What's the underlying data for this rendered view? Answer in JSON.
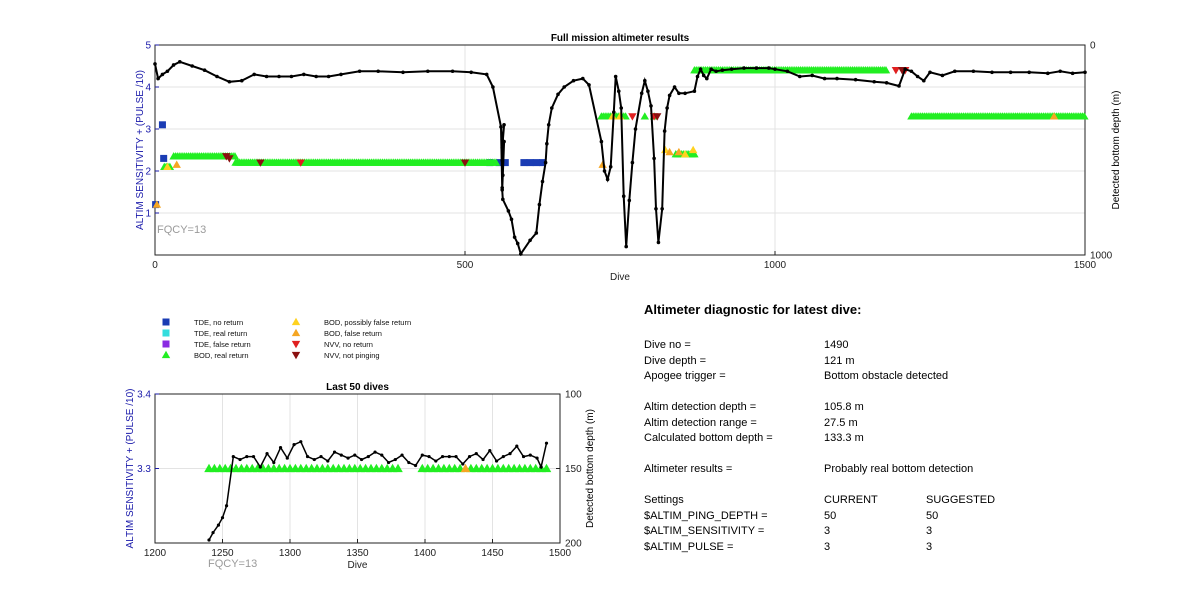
{
  "colors": {
    "tde_no_return": "#1a3cb4",
    "tde_real_return": "#33dddd",
    "tde_false_return": "#8a2be2",
    "bod_real_return": "#22ee22",
    "bod_possibly_false": "#ffd21f",
    "bod_false_return": "#f5a623",
    "nvv_no_return": "#e02020",
    "nvv_not_pinging": "#8b1010",
    "axis_left": "#1a1aaa",
    "depth_line": "#000000",
    "fqcy": "#9a9a9a"
  },
  "chart_data": [
    {
      "type": "scatter",
      "title": "Full mission altimeter results",
      "xlabel": "Dive",
      "ylabel": "ALTIM SENSITIVITY + (PULSE /10)",
      "ylabel_right": "Detected bottom depth (m)",
      "xlim": [
        0,
        1500
      ],
      "ylim": [
        0,
        5
      ],
      "ylim_right": [
        1000,
        0
      ],
      "xticks": [
        0,
        500,
        1000,
        1500
      ],
      "yticks": [
        1,
        2,
        3,
        4,
        5
      ],
      "yticks_right": [
        0,
        1000
      ],
      "grid": true,
      "annotation": "FQCY=13",
      "legend": [
        {
          "label": "TDE, no return",
          "marker": "square",
          "color": "#1a3cb4"
        },
        {
          "label": "TDE, real return",
          "marker": "square",
          "color": "#33dddd"
        },
        {
          "label": "TDE, false return",
          "marker": "square",
          "color": "#8a2be2"
        },
        {
          "label": "BOD, real return",
          "marker": "triangle-up",
          "color": "#22ee22"
        },
        {
          "label": "BOD, possibly false return",
          "marker": "triangle-up",
          "color": "#ffd21f"
        },
        {
          "label": "BOD, false return",
          "marker": "triangle-up",
          "color": "#f5a623"
        },
        {
          "label": "NVV, no return",
          "marker": "triangle-down",
          "color": "#e02020"
        },
        {
          "label": "NVV, not pinging",
          "marker": "triangle-down",
          "color": "#8b1010"
        }
      ],
      "altimeter_series": [
        {
          "name": "TDE, no return",
          "marker": "square",
          "color": "#1a3cb4",
          "points": [
            [
              1,
              1.2
            ],
            [
              12,
              3.1
            ],
            [
              14,
              2.3
            ],
            [
              540,
              2.2
            ],
            [
              555,
              2.2
            ],
            [
              565,
              2.2
            ],
            [
              595,
              2.2
            ],
            [
              605,
              2.2
            ],
            [
              615,
              2.2
            ],
            [
              625,
              2.2
            ]
          ]
        },
        {
          "name": "BOD, real return",
          "marker": "triangle-up",
          "color": "#22ee22",
          "x_ranges": [
            [
              15,
              25,
              2.1
            ],
            [
              30,
              130,
              2.35
            ],
            [
              130,
              550,
              2.2
            ],
            [
              720,
              760,
              3.3
            ],
            [
              840,
              870,
              2.4
            ],
            [
              870,
              1180,
              4.4
            ],
            [
              1220,
              1500,
              3.3
            ]
          ],
          "points": [
            [
              790,
              3.3
            ],
            [
              805,
              3.3
            ]
          ]
        },
        {
          "name": "BOD, possibly false return",
          "marker": "triangle-up",
          "color": "#ffd21f",
          "points": [
            [
              20,
              2.1
            ],
            [
              738,
              3.3
            ],
            [
              750,
              3.3
            ],
            [
              823,
              2.5
            ],
            [
              855,
              2.4
            ],
            [
              868,
              2.5
            ]
          ]
        },
        {
          "name": "BOD, false return",
          "marker": "triangle-up",
          "color": "#f5a623",
          "points": [
            [
              3,
              1.2
            ],
            [
              35,
              2.15
            ],
            [
              722,
              2.15
            ],
            [
              830,
              2.45
            ],
            [
              845,
              2.45
            ],
            [
              1450,
              3.3
            ]
          ]
        },
        {
          "name": "NVV, no return",
          "marker": "triangle-down",
          "color": "#e02020",
          "points": [
            [
              235,
              2.2
            ],
            [
              770,
              3.3
            ],
            [
              805,
              3.3
            ],
            [
              1195,
              4.4
            ],
            [
              1210,
              4.4
            ]
          ]
        },
        {
          "name": "NVV, not pinging",
          "marker": "triangle-down",
          "color": "#8b1010",
          "points": [
            [
              115,
              2.35
            ],
            [
              120,
              2.3
            ],
            [
              170,
              2.2
            ],
            [
              500,
              2.2
            ],
            [
              810,
              3.3
            ],
            [
              1205,
              4.4
            ]
          ]
        }
      ],
      "depth_series": {
        "name": "Detected bottom depth",
        "color": "#000000",
        "points": [
          [
            0,
            90
          ],
          [
            5,
            160
          ],
          [
            12,
            140
          ],
          [
            20,
            125
          ],
          [
            30,
            95
          ],
          [
            40,
            80
          ],
          [
            60,
            100
          ],
          [
            80,
            120
          ],
          [
            100,
            150
          ],
          [
            120,
            175
          ],
          [
            140,
            170
          ],
          [
            160,
            140
          ],
          [
            180,
            150
          ],
          [
            200,
            150
          ],
          [
            220,
            150
          ],
          [
            240,
            140
          ],
          [
            260,
            150
          ],
          [
            280,
            150
          ],
          [
            300,
            140
          ],
          [
            330,
            125
          ],
          [
            360,
            125
          ],
          [
            400,
            130
          ],
          [
            440,
            125
          ],
          [
            480,
            125
          ],
          [
            510,
            130
          ],
          [
            535,
            140
          ],
          [
            545,
            200
          ],
          [
            558,
            390
          ],
          [
            560,
            680
          ],
          [
            560,
            490
          ],
          [
            563,
            380
          ],
          [
            560,
            450
          ],
          [
            560,
            550
          ],
          [
            563,
            460
          ],
          [
            561,
            620
          ],
          [
            560,
            690
          ],
          [
            561,
            735
          ],
          [
            570,
            790
          ],
          [
            575,
            830
          ],
          [
            580,
            915
          ],
          [
            585,
            945
          ],
          [
            590,
            995
          ],
          [
            605,
            930
          ],
          [
            615,
            895
          ],
          [
            620,
            760
          ],
          [
            625,
            650
          ],
          [
            630,
            560
          ],
          [
            632,
            470
          ],
          [
            635,
            380
          ],
          [
            640,
            300
          ],
          [
            650,
            235
          ],
          [
            660,
            200
          ],
          [
            675,
            170
          ],
          [
            690,
            160
          ],
          [
            700,
            190
          ],
          [
            720,
            460
          ],
          [
            725,
            600
          ],
          [
            730,
            640
          ],
          [
            735,
            580
          ],
          [
            740,
            320
          ],
          [
            743,
            150
          ],
          [
            748,
            220
          ],
          [
            752,
            300
          ],
          [
            756,
            720
          ],
          [
            760,
            960
          ],
          [
            765,
            740
          ],
          [
            770,
            560
          ],
          [
            775,
            400
          ],
          [
            785,
            230
          ],
          [
            790,
            170
          ],
          [
            795,
            220
          ],
          [
            800,
            290
          ],
          [
            805,
            540
          ],
          [
            808,
            780
          ],
          [
            812,
            940
          ],
          [
            818,
            780
          ],
          [
            822,
            410
          ],
          [
            826,
            300
          ],
          [
            830,
            240
          ],
          [
            838,
            200
          ],
          [
            845,
            230
          ],
          [
            855,
            230
          ],
          [
            870,
            220
          ],
          [
            875,
            150
          ],
          [
            880,
            115
          ],
          [
            885,
            145
          ],
          [
            890,
            160
          ],
          [
            897,
            115
          ],
          [
            905,
            125
          ],
          [
            915,
            120
          ],
          [
            930,
            115
          ],
          [
            950,
            110
          ],
          [
            970,
            110
          ],
          [
            990,
            110
          ],
          [
            1000,
            115
          ],
          [
            1020,
            125
          ],
          [
            1040,
            150
          ],
          [
            1060,
            145
          ],
          [
            1080,
            160
          ],
          [
            1100,
            160
          ],
          [
            1130,
            165
          ],
          [
            1160,
            175
          ],
          [
            1180,
            180
          ],
          [
            1200,
            195
          ],
          [
            1210,
            115
          ],
          [
            1220,
            125
          ],
          [
            1230,
            150
          ],
          [
            1240,
            170
          ],
          [
            1250,
            130
          ],
          [
            1270,
            145
          ],
          [
            1290,
            125
          ],
          [
            1320,
            125
          ],
          [
            1350,
            130
          ],
          [
            1380,
            130
          ],
          [
            1410,
            130
          ],
          [
            1440,
            135
          ],
          [
            1460,
            125
          ],
          [
            1480,
            135
          ],
          [
            1500,
            130
          ]
        ]
      }
    },
    {
      "type": "scatter",
      "title": "Last 50 dives",
      "xlabel": "Dive",
      "ylabel": "ALTIM SENSITIVITY + (PULSE /10)",
      "ylabel_right": "Detected bottom depth (m)",
      "xlim": [
        1200,
        1500
      ],
      "ylim": [
        3.2,
        3.4
      ],
      "ylim_right": [
        200,
        100
      ],
      "xticks": [
        1200,
        1250,
        1300,
        1350,
        1400,
        1450,
        1500
      ],
      "yticks": [
        3.3,
        3.4
      ],
      "yticks_right": [
        100,
        150,
        200
      ],
      "grid": true,
      "annotation": "FQCY=13",
      "altimeter_series": [
        {
          "name": "BOD, real return",
          "marker": "triangle-up",
          "color": "#22ee22",
          "x": [
            1240,
            1244,
            1248,
            1252,
            1256,
            1260,
            1264,
            1268,
            1272,
            1276,
            1280,
            1284,
            1288,
            1292,
            1296,
            1300,
            1304,
            1308,
            1312,
            1316,
            1320,
            1324,
            1328,
            1332,
            1336,
            1340,
            1344,
            1348,
            1352,
            1356,
            1360,
            1364,
            1368,
            1372,
            1376,
            1380,
            1398,
            1402,
            1406,
            1410,
            1414,
            1418,
            1422,
            1426,
            1434,
            1438,
            1442,
            1446,
            1450,
            1454,
            1458,
            1462,
            1466,
            1470,
            1474,
            1478,
            1482,
            1486,
            1490
          ],
          "y": 3.3
        },
        {
          "name": "BOD, false return",
          "marker": "triangle-up",
          "color": "#f5a623",
          "points": [
            [
              1430,
              3.3
            ]
          ]
        }
      ],
      "depth_series": {
        "name": "Detected bottom depth",
        "color": "#000000",
        "points": [
          [
            1240,
            198
          ],
          [
            1243,
            193
          ],
          [
            1247,
            188
          ],
          [
            1250,
            183
          ],
          [
            1253,
            175
          ],
          [
            1258,
            142
          ],
          [
            1263,
            144
          ],
          [
            1268,
            142
          ],
          [
            1273,
            142
          ],
          [
            1278,
            149
          ],
          [
            1283,
            140
          ],
          [
            1288,
            146
          ],
          [
            1293,
            136
          ],
          [
            1298,
            143
          ],
          [
            1303,
            134
          ],
          [
            1308,
            132
          ],
          [
            1313,
            142
          ],
          [
            1318,
            144
          ],
          [
            1323,
            142
          ],
          [
            1328,
            145
          ],
          [
            1333,
            139
          ],
          [
            1338,
            141
          ],
          [
            1343,
            143
          ],
          [
            1348,
            141
          ],
          [
            1353,
            144
          ],
          [
            1358,
            142
          ],
          [
            1363,
            139
          ],
          [
            1368,
            141
          ],
          [
            1373,
            146
          ],
          [
            1378,
            144
          ],
          [
            1383,
            141
          ],
          [
            1388,
            146
          ],
          [
            1393,
            148
          ],
          [
            1398,
            141
          ],
          [
            1403,
            142
          ],
          [
            1408,
            145
          ],
          [
            1413,
            142
          ],
          [
            1418,
            142
          ],
          [
            1423,
            142
          ],
          [
            1428,
            147
          ],
          [
            1433,
            142
          ],
          [
            1438,
            140
          ],
          [
            1443,
            144
          ],
          [
            1448,
            138
          ],
          [
            1453,
            145
          ],
          [
            1458,
            142
          ],
          [
            1463,
            140
          ],
          [
            1468,
            135
          ],
          [
            1473,
            142
          ],
          [
            1478,
            141
          ],
          [
            1483,
            143
          ],
          [
            1486,
            149
          ],
          [
            1490,
            133
          ]
        ]
      }
    }
  ],
  "diagnostic": {
    "title": "Altimeter diagnostic for latest dive:",
    "rows": [
      {
        "label": "Dive no =",
        "value": "1490"
      },
      {
        "label": "Dive depth =",
        "value": "121 m"
      },
      {
        "label": "Apogee trigger =",
        "value": "Bottom obstacle detected"
      },
      {
        "label": "Altim detection depth =",
        "value": "105.8 m"
      },
      {
        "label": "Altim detection range =",
        "value": "27.5 m"
      },
      {
        "label": "Calculated bottom depth =",
        "value": "133.3 m"
      },
      {
        "label": "Altimeter results =",
        "value": "Probably real bottom detection"
      }
    ],
    "settings": {
      "header": [
        "Settings",
        "CURRENT",
        "SUGGESTED"
      ],
      "rows": [
        [
          "$ALTIM_PING_DEPTH =",
          "50",
          "50"
        ],
        [
          "$ALTIM_SENSITIVITY =",
          "3",
          "3"
        ],
        [
          "$ALTIM_PULSE =",
          "3",
          "3"
        ]
      ]
    }
  }
}
